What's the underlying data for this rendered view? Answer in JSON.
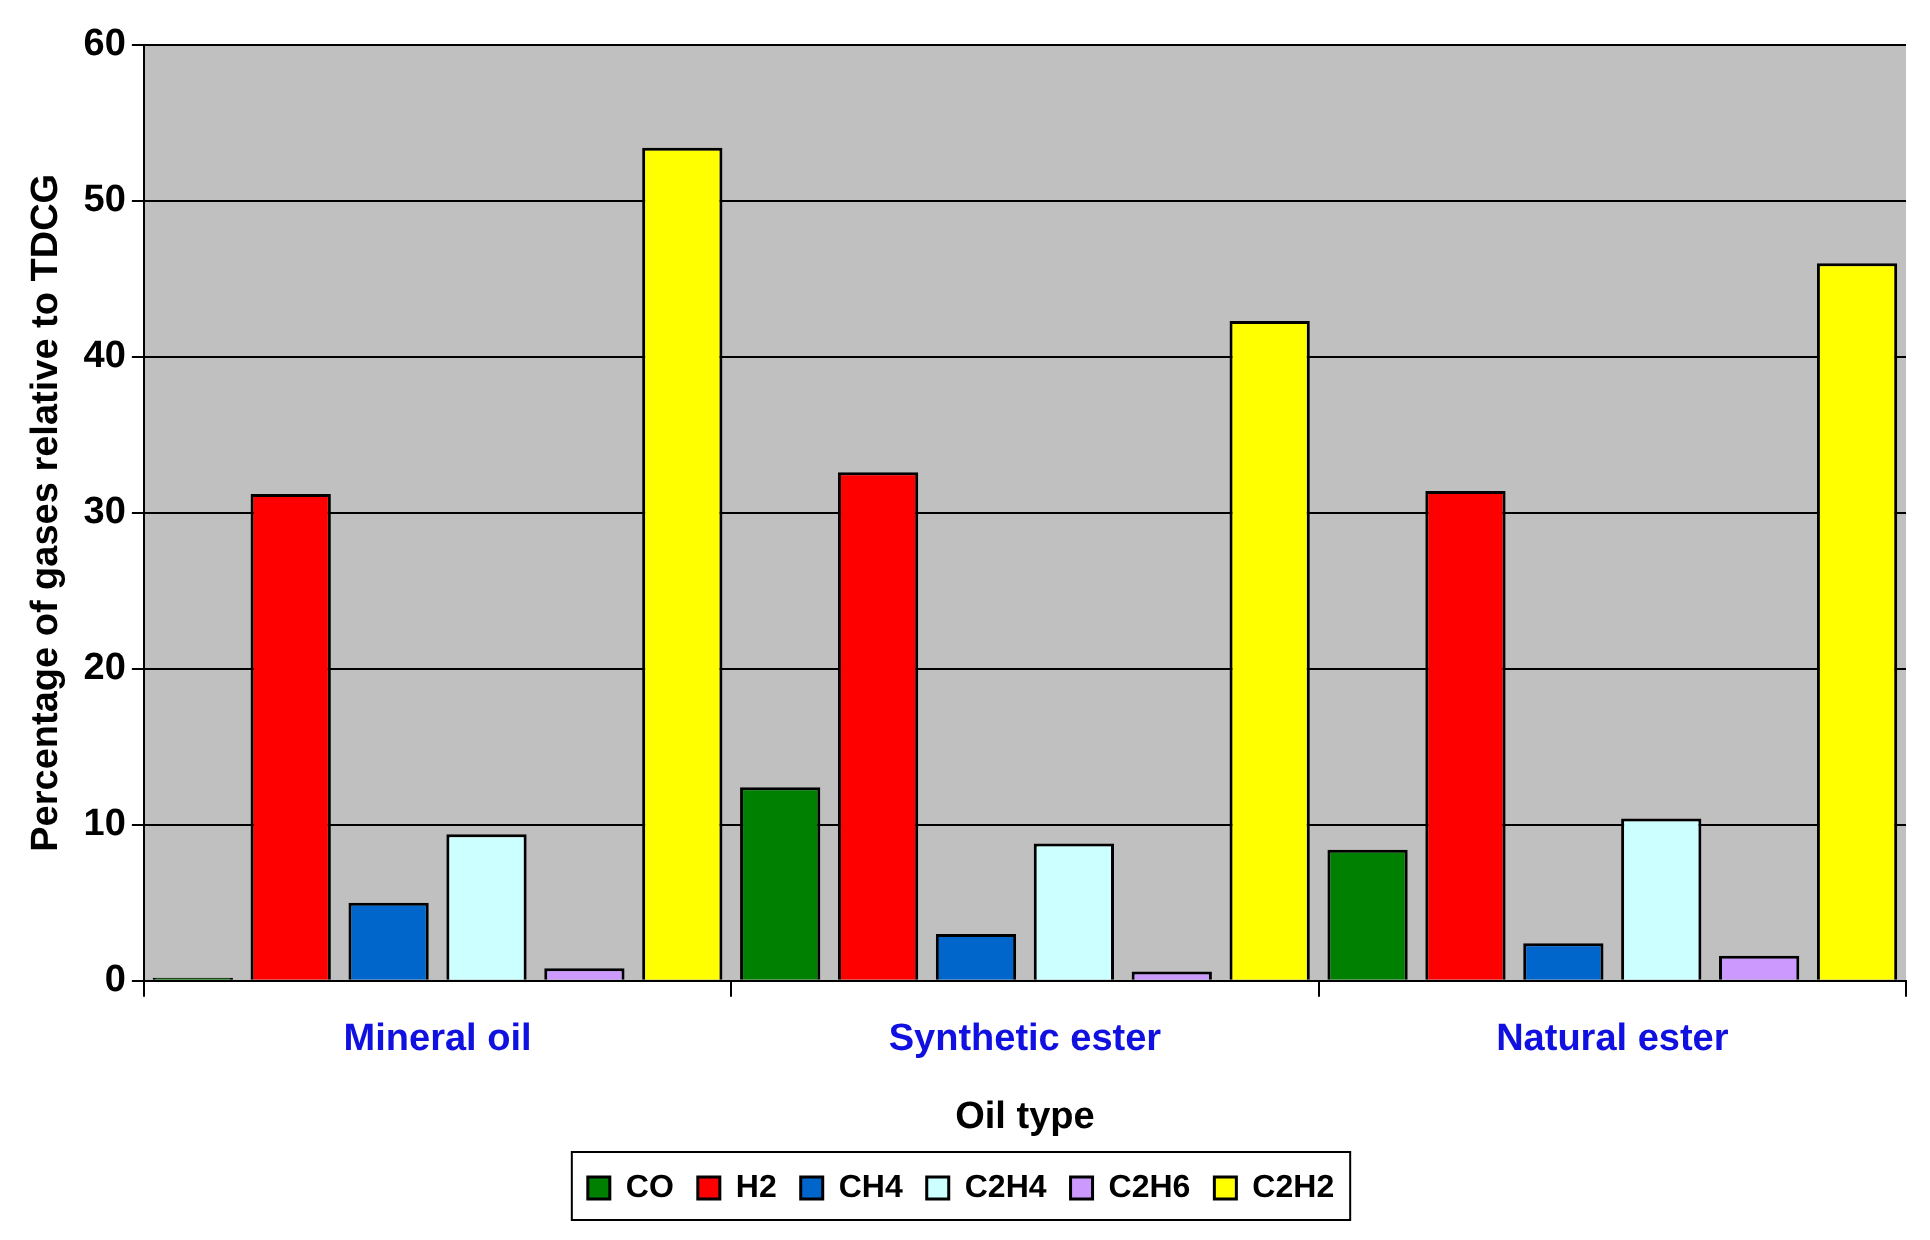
{
  "chart_data": {
    "type": "bar",
    "xlabel": "Oil type",
    "ylabel": "Percentage of gases relative to TDCG",
    "categories": [
      "Mineral oil",
      "Synthetic ester",
      "Natural ester"
    ],
    "series": [
      {
        "name": "CO",
        "color": "#008000",
        "values": [
          0.2,
          12.4,
          8.4
        ]
      },
      {
        "name": "H2",
        "color": "#ff0000",
        "values": [
          31.2,
          32.6,
          31.4
        ]
      },
      {
        "name": "CH4",
        "color": "#0066cc",
        "values": [
          5.0,
          3.0,
          2.4
        ]
      },
      {
        "name": "C2H4",
        "color": "#ccffff",
        "values": [
          9.4,
          8.8,
          10.4
        ]
      },
      {
        "name": "C2H6",
        "color": "#cc99ff",
        "values": [
          0.8,
          0.6,
          1.6
        ]
      },
      {
        "name": "C2H2",
        "color": "#ffff00",
        "values": [
          53.4,
          42.3,
          46.0
        ]
      }
    ],
    "ylim": [
      0,
      60
    ],
    "yticks": [
      0,
      10,
      20,
      30,
      40,
      50,
      60
    ],
    "grid": "y",
    "legend": "bottom"
  }
}
